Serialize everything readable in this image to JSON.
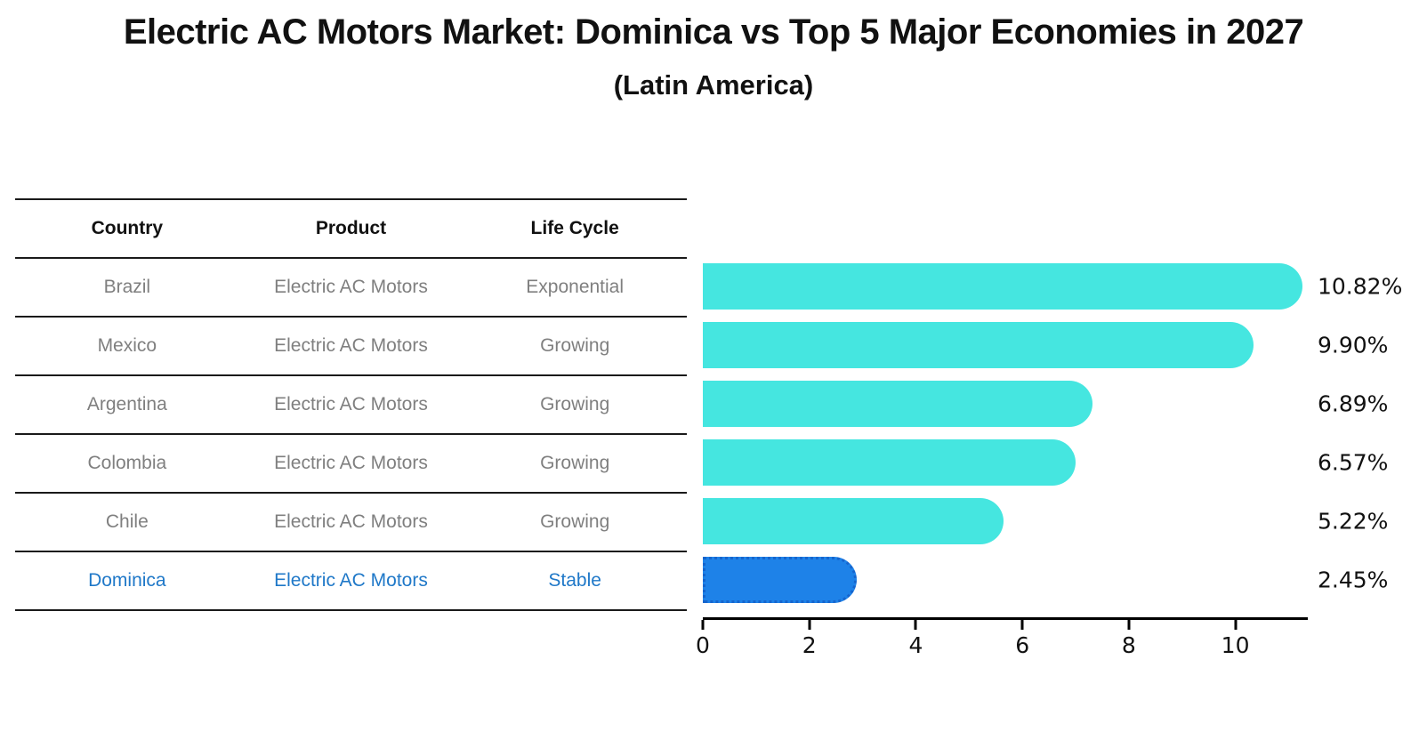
{
  "title": "Electric AC Motors Market: Dominica vs Top 5 Major Economies in 2027",
  "subtitle": "(Latin America)",
  "table": {
    "headers": [
      "Country",
      "Product",
      "Life Cycle"
    ],
    "rows": [
      {
        "country": "Brazil",
        "product": "Electric AC Motors",
        "life_cycle": "Exponential"
      },
      {
        "country": "Mexico",
        "product": "Electric AC Motors",
        "life_cycle": "Growing"
      },
      {
        "country": "Argentina",
        "product": "Electric AC Motors",
        "life_cycle": "Growing"
      },
      {
        "country": "Colombia",
        "product": "Electric AC Motors",
        "life_cycle": "Growing"
      },
      {
        "country": "Chile",
        "product": "Electric AC Motors",
        "life_cycle": "Growing"
      },
      {
        "country": "Dominica",
        "product": "Electric AC Motors",
        "life_cycle": "Stable"
      }
    ],
    "highlight_row": 5,
    "highlight_text_color": "#1F78C8"
  },
  "chart_data": {
    "type": "bar",
    "orientation": "horizontal",
    "title": "Electric AC Motors Market: Dominica vs Top 5 Major Economies in 2027 (Latin America)",
    "categories": [
      "Brazil",
      "Mexico",
      "Argentina",
      "Colombia",
      "Chile",
      "Dominica"
    ],
    "values": [
      10.82,
      9.9,
      6.89,
      6.57,
      5.22,
      2.45
    ],
    "value_labels": [
      "10.82%",
      "9.90%",
      "6.89%",
      "6.57%",
      "5.22%",
      "2.45%"
    ],
    "x_ticks": [
      "0",
      "2",
      "4",
      "6",
      "8",
      "10"
    ],
    "xlim": [
      0,
      11.36
    ],
    "grid": false,
    "legend": false,
    "bar_color": "#45E6E0",
    "highlight_index": 5,
    "highlight_bar_color": "#1E82E8",
    "highlight_border_color": "#1565CE"
  }
}
